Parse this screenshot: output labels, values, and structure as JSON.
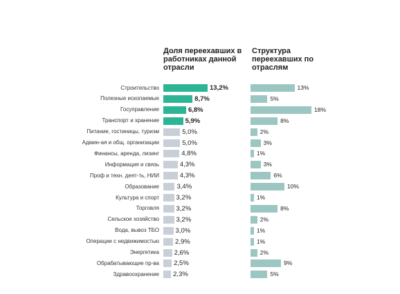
{
  "chart_data": [
    {
      "type": "bar",
      "orientation": "horizontal",
      "title": "Доля переехавших в работниках данной отрасли",
      "categories": [
        "Строительство",
        "Полезные ископаемые",
        "Госуправление",
        "Транспорт и хранение",
        "Питание, гостиницы, туризм",
        "Админ-ая и общ. организации",
        "Финансы, аренда, лизинг",
        "Информация и связь",
        "Проф и техн. деят-ть, НИИ",
        "Образование",
        "Культура и спорт",
        "Торговля",
        "Сельское хозяйство",
        "Вода, вывоз ТБО",
        "Операции с недвижимостью",
        "Энергетика",
        "Обрабатывающие пр-ва",
        "Здравоохранение"
      ],
      "values": [
        13.2,
        8.7,
        6.8,
        5.9,
        5.0,
        5.0,
        4.8,
        4.3,
        4.3,
        3.4,
        3.2,
        3.2,
        3.2,
        3.0,
        2.9,
        2.6,
        2.5,
        2.3
      ],
      "labels": [
        "13,2%",
        "8,7%",
        "6,8%",
        "5,9%",
        "5,0%",
        "5,0%",
        "4,8%",
        "4,3%",
        "4,3%",
        "3,4%",
        "3,2%",
        "3,2%",
        "3,2%",
        "3,0%",
        "2,9%",
        "2,6%",
        "2,5%",
        "2,3%"
      ],
      "highlight_count": 4,
      "colors": {
        "highlight": "#2bb595",
        "normal": "#c9cfd6"
      }
    },
    {
      "type": "bar",
      "orientation": "horizontal",
      "title": "Структура переехавших по отраслям",
      "values": [
        13,
        5,
        18,
        8,
        2,
        3,
        1,
        3,
        6,
        10,
        1,
        8,
        2,
        1,
        1,
        2,
        9,
        5
      ],
      "labels": [
        "13%",
        "5%",
        "18%",
        "8%",
        "2%",
        "3%",
        "1%",
        "3%",
        "6%",
        "10%",
        "1%",
        "8%",
        "2%",
        "1%",
        "1%",
        "2%",
        "9%",
        "5%"
      ],
      "colors": {
        "bar": "#9cc6c2"
      }
    }
  ]
}
